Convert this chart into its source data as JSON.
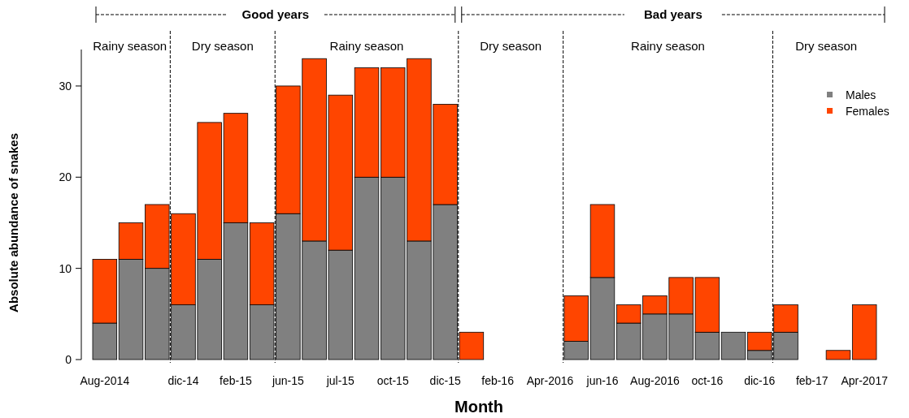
{
  "chart_data": {
    "type": "bar",
    "stacked": true,
    "xlabel": "Month",
    "ylabel": "Absolute abundance of snakes",
    "categories": [
      "Aug-2014",
      null,
      null,
      "dic-14",
      null,
      "feb-15",
      null,
      "jun-15",
      null,
      "jul-15",
      null,
      "oct-15",
      null,
      "dic-15",
      null,
      "feb-16",
      null,
      "Apr-2016",
      null,
      "jun-16",
      null,
      "Aug-2016",
      null,
      "oct-16",
      null,
      "dic-16",
      null,
      "feb-17",
      null,
      "Apr-2017"
    ],
    "series": [
      {
        "name": "Males",
        "color": "#808080",
        "values": [
          4,
          11,
          10,
          6,
          11,
          15,
          6,
          16,
          13,
          12,
          20,
          20,
          13,
          17,
          0,
          0,
          0,
          0,
          2,
          9,
          4,
          5,
          5,
          3,
          3,
          1,
          3,
          0,
          0,
          0
        ]
      },
      {
        "name": "Females",
        "color": "#ff4500",
        "values": [
          7,
          4,
          7,
          10,
          15,
          12,
          9,
          14,
          20,
          17,
          12,
          12,
          20,
          11,
          3,
          0,
          0,
          0,
          5,
          8,
          2,
          2,
          4,
          6,
          0,
          2,
          3,
          0,
          1,
          6
        ]
      }
    ],
    "ylim": [
      0,
      34
    ],
    "yticks": [
      0,
      10,
      20,
      30
    ],
    "grid": false,
    "legend": "top right",
    "marker": "square",
    "annotations": [
      "Good years",
      "Bad years",
      "Rainy season",
      "Dry season",
      "Rainy season",
      "Dry season",
      "Rainy season",
      "Dry season"
    ]
  }
}
